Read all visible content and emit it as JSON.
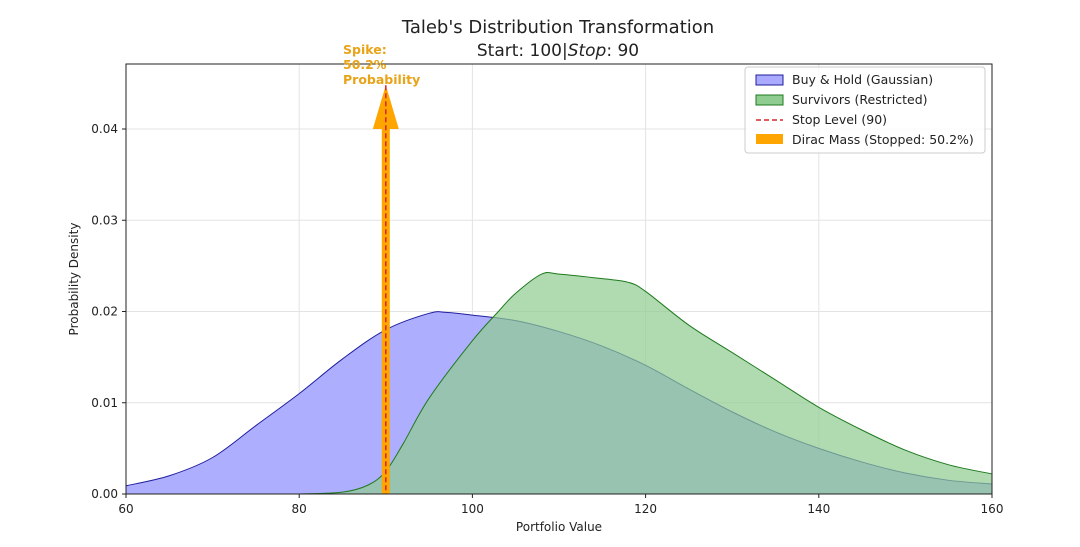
{
  "chart_data": {
    "type": "area",
    "title": "Taleb's Distribution Transformation",
    "subtitle_prefix": "Start: 100|",
    "subtitle_italic": "Stop",
    "subtitle_suffix": ": 90",
    "xlabel": "Portfolio Value",
    "ylabel": "Probability Density",
    "xlim": [
      60,
      160
    ],
    "ylim": [
      0,
      0.047
    ],
    "xticks": [
      "60",
      "80",
      "100",
      "120",
      "140",
      "160"
    ],
    "yticks": [
      "0.00",
      "0.01",
      "0.02",
      "0.03",
      "0.04"
    ],
    "grid": true,
    "legend_placement": "top-right",
    "series": [
      {
        "name": "Buy & Hold (Gaussian)",
        "fill": "#aaaaff",
        "stroke": "#1f1f9e",
        "x": [
          60,
          65,
          70,
          75,
          80,
          85,
          90,
          95,
          97,
          100,
          105,
          110,
          115,
          120,
          125,
          130,
          135,
          140,
          145,
          150,
          155,
          160
        ],
        "y": [
          0.0009,
          0.002,
          0.004,
          0.0075,
          0.011,
          0.0148,
          0.018,
          0.0198,
          0.0199,
          0.0196,
          0.019,
          0.0178,
          0.0162,
          0.0141,
          0.0115,
          0.009,
          0.0068,
          0.005,
          0.0035,
          0.0023,
          0.0015,
          0.0011
        ]
      },
      {
        "name": "Survivors (Restricted)",
        "fill": "#8fcc8f",
        "stroke": "#1e7a1e",
        "x": [
          80,
          85,
          88,
          90,
          92,
          95,
          100,
          103,
          105,
          108,
          110,
          115,
          118,
          120,
          125,
          130,
          135,
          140,
          145,
          150,
          155,
          160
        ],
        "y": [
          0,
          0.0002,
          0.001,
          0.0025,
          0.0055,
          0.0105,
          0.0168,
          0.02,
          0.022,
          0.0241,
          0.0241,
          0.0236,
          0.0232,
          0.0222,
          0.0185,
          0.0155,
          0.0125,
          0.0095,
          0.007,
          0.0048,
          0.0032,
          0.0022
        ]
      }
    ],
    "stop_level": {
      "name": "Stop Level (90)",
      "x": 90,
      "color": "#d62728"
    },
    "dirac": {
      "name": "Dirac Mass (Stopped: 50.2%)",
      "x": 90,
      "height": 0.04,
      "arrow_tip": 0.0448,
      "color": "#ffa500"
    },
    "annotation": {
      "lines": [
        "Spike:",
        "50.2%",
        "Probability"
      ],
      "color": "#e8a317"
    }
  }
}
